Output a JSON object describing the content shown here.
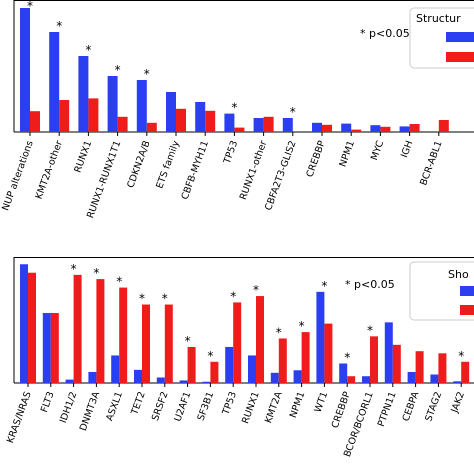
{
  "colors": {
    "series_a": "#2b3ff0",
    "series_b": "#ef1c1c"
  },
  "chart_data": [
    {
      "type": "bar",
      "panel": "top",
      "legend_title": "Structur",
      "legend_placement": "top-right",
      "annotation": "* p<0.05",
      "categories": [
        "NUP alterations",
        "KMT2A-other",
        "RUNX1",
        "RUNX1-RUNX1T1",
        "CDKN2A/B",
        "ETS family",
        "CBFB-MYH11",
        "TP53",
        "RUNX1-other",
        "CBFA2T3-GLIS2",
        "CREBBP",
        "NPM1",
        "MYC",
        "IGH",
        "BCR-ABL1"
      ],
      "series": [
        {
          "values": [
            31,
            25,
            19,
            14,
            13,
            10,
            7.5,
            4.6,
            3.5,
            3.5,
            2.3,
            2.1,
            1.7,
            1.4,
            0
          ]
        },
        {
          "values": [
            5.2,
            8.0,
            8.4,
            3.8,
            2.3,
            5.8,
            5.3,
            1.1,
            3.8,
            0,
            1.8,
            0.6,
            1.3,
            2.0,
            3.0
          ]
        }
      ],
      "significant": [
        true,
        true,
        true,
        true,
        true,
        false,
        false,
        true,
        false,
        true,
        false,
        false,
        false,
        false,
        false
      ],
      "ylim": [
        0,
        32
      ]
    },
    {
      "type": "bar",
      "panel": "bottom",
      "legend_title": "Sho",
      "legend_placement": "top-right",
      "annotation": "* p<0.05",
      "categories": [
        "KRAS/NRAS",
        "FLT3",
        "IDH1/2",
        "DNMT3A",
        "ASXL1",
        "TET2",
        "SRSF2",
        "U2AF1",
        "SF3B1",
        "TP53",
        "RUNX1",
        "KMT2A",
        "NPM1",
        "WT1",
        "CREBBP",
        "BCOR/BCORL1",
        "PTPN11",
        "CEBPA",
        "STAG2",
        "JAK2"
      ],
      "series": [
        {
          "values": [
            28,
            16.5,
            0.8,
            2.6,
            6.5,
            3.1,
            1.3,
            0.6,
            0.3,
            8.5,
            6.5,
            2.4,
            3.0,
            21.5,
            4.6,
            1.6,
            14.3,
            2.6,
            2.0,
            0.4
          ]
        },
        {
          "values": [
            26,
            16.5,
            25.5,
            24.5,
            22.5,
            18.5,
            18.5,
            8.5,
            5.0,
            19.0,
            20.5,
            10.5,
            12.0,
            14.0,
            1.6,
            11.0,
            9.0,
            7.5,
            7.0,
            5.0
          ]
        }
      ],
      "significant": [
        false,
        false,
        true,
        true,
        true,
        true,
        true,
        true,
        true,
        true,
        true,
        true,
        true,
        true,
        true,
        true,
        false,
        false,
        false,
        true
      ],
      "ylim": [
        0,
        29
      ]
    }
  ]
}
